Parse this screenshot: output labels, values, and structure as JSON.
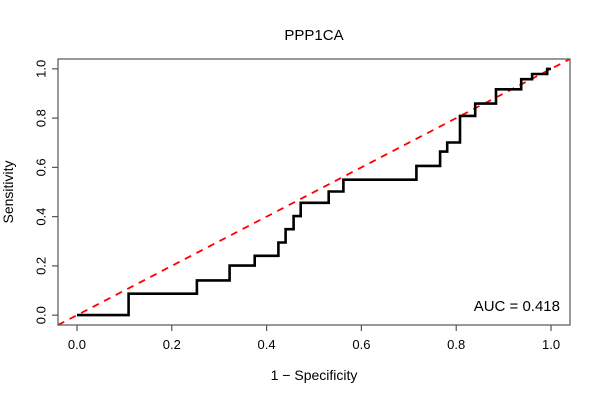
{
  "chart_data": {
    "type": "line",
    "subtype": "roc-step-curve",
    "title": "PPP1CA",
    "xlabel": "1 − Specificity",
    "ylabel": "Sensitivity",
    "x_tick_labels": [
      "0.0",
      "0.2",
      "0.4",
      "0.6",
      "0.8",
      "1.0"
    ],
    "y_tick_labels": [
      "0.0",
      "0.2",
      "0.4",
      "0.6",
      "0.8",
      "1.0"
    ],
    "xlim": [
      -0.04,
      1.04
    ],
    "ylim": [
      -0.04,
      1.04
    ],
    "grid": false,
    "legend": "none",
    "auc_value": 0.418,
    "auc_label": "AUC = 0.418",
    "curve_color": "#000000",
    "diagonal_color": "#ff0000",
    "diagonal_style": "dashed",
    "frame_color": "#555555",
    "roc_curve_vertices": [
      [
        0.0,
        0.0
      ],
      [
        0.109,
        0.0
      ],
      [
        0.109,
        0.087
      ],
      [
        0.253,
        0.087
      ],
      [
        0.253,
        0.141
      ],
      [
        0.322,
        0.141
      ],
      [
        0.322,
        0.201
      ],
      [
        0.375,
        0.201
      ],
      [
        0.375,
        0.241
      ],
      [
        0.425,
        0.241
      ],
      [
        0.425,
        0.295
      ],
      [
        0.44,
        0.295
      ],
      [
        0.44,
        0.349
      ],
      [
        0.457,
        0.349
      ],
      [
        0.457,
        0.402
      ],
      [
        0.472,
        0.402
      ],
      [
        0.472,
        0.456
      ],
      [
        0.531,
        0.456
      ],
      [
        0.531,
        0.502
      ],
      [
        0.562,
        0.502
      ],
      [
        0.562,
        0.55
      ],
      [
        0.716,
        0.55
      ],
      [
        0.716,
        0.606
      ],
      [
        0.766,
        0.606
      ],
      [
        0.766,
        0.664
      ],
      [
        0.781,
        0.664
      ],
      [
        0.781,
        0.701
      ],
      [
        0.808,
        0.701
      ],
      [
        0.808,
        0.809
      ],
      [
        0.84,
        0.809
      ],
      [
        0.84,
        0.859
      ],
      [
        0.884,
        0.859
      ],
      [
        0.884,
        0.917
      ],
      [
        0.937,
        0.917
      ],
      [
        0.937,
        0.958
      ],
      [
        0.96,
        0.958
      ],
      [
        0.96,
        0.979
      ],
      [
        0.992,
        0.979
      ],
      [
        0.992,
        1.0
      ],
      [
        1.0,
        1.0
      ]
    ],
    "reference_line": [
      [
        -0.04,
        -0.04
      ],
      [
        1.04,
        1.04
      ]
    ]
  }
}
